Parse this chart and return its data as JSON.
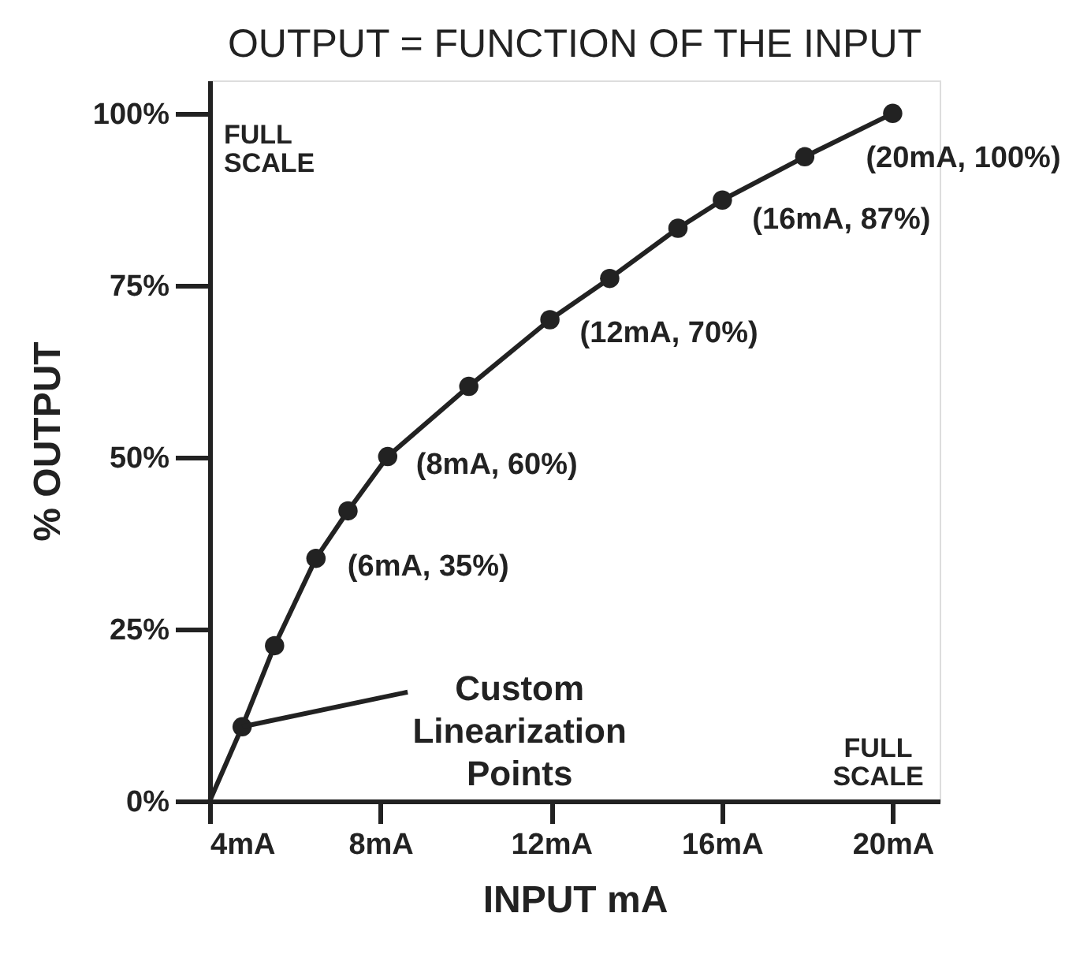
{
  "chart_data": {
    "type": "line",
    "title": "OUTPUT = FUNCTION OF THE INPUT",
    "xlabel": "INPUT mA",
    "ylabel": "% OUTPUT",
    "xlim": [
      4,
      21.1
    ],
    "ylim": [
      0,
      104.8
    ],
    "xticks": [
      {
        "value": 4,
        "label": "4mA"
      },
      {
        "value": 8,
        "label": "8mA"
      },
      {
        "value": 12,
        "label": "12mA"
      },
      {
        "value": 16,
        "label": "16mA"
      },
      {
        "value": 20,
        "label": "20mA"
      }
    ],
    "yticks": [
      {
        "value": 0,
        "label": "0%"
      },
      {
        "value": 25,
        "label": "25%"
      },
      {
        "value": 50,
        "label": "50%"
      },
      {
        "value": 75,
        "label": "75%"
      },
      {
        "value": 100,
        "label": "100%"
      }
    ],
    "grid": false,
    "series": [
      {
        "type": "line",
        "color": "#222222",
        "marker": "none",
        "x": [
          4,
          4.76,
          5.52,
          6.49,
          7.24,
          8.17,
          10.07,
          11.97,
          13.37,
          14.97,
          16.01,
          17.94,
          20
        ],
        "values": [
          0,
          10.8,
          22.6,
          35.3,
          42.2,
          50.1,
          60.3,
          70.0,
          76.0,
          83.3,
          87.4,
          93.7,
          100
        ]
      },
      {
        "type": "scatter",
        "color": "#222222",
        "marker": "circle",
        "x": [
          4.76,
          5.52,
          6.49,
          7.24,
          8.17,
          10.07,
          11.97,
          13.37,
          14.97,
          16.01,
          17.94,
          20
        ],
        "values": [
          10.8,
          22.6,
          35.3,
          42.2,
          50.1,
          60.3,
          70.0,
          76.0,
          83.3,
          87.4,
          93.7,
          100
        ]
      }
    ],
    "annotations": [
      "FULL\nSCALE",
      "FULL\nSCALE",
      {
        "text": "(20mA, 100%)",
        "x": 20,
        "y": 100
      },
      {
        "text": "(16mA, 87%)",
        "x": 16.01,
        "y": 87.4
      },
      {
        "text": "(12mA, 70%)",
        "x": 11.97,
        "y": 70.0
      },
      {
        "text": "(8mA, 60%)",
        "x": 8.17,
        "y": 50.1
      },
      {
        "text": "(6mA, 35%)",
        "x": 6.49,
        "y": 35.3
      },
      {
        "text": "Custom\nLinearization\nPoints",
        "x": 4.76,
        "y": 10.8
      }
    ]
  }
}
